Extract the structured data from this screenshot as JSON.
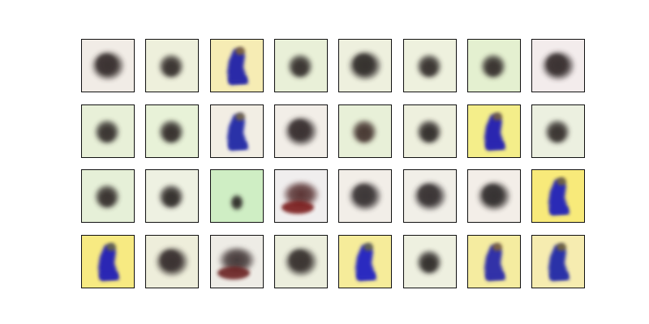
{
  "figure": {
    "rows": 4,
    "cols": 8,
    "tiles": [
      {
        "kind": "dark-blob",
        "bg": "#f1ece6",
        "fg": "#3a3230"
      },
      {
        "kind": "small-blob",
        "bg": "#eef0dc",
        "fg": "#3b3532"
      },
      {
        "kind": "blue-figure",
        "bg": "#f6ecb4",
        "fg": "#2a2aa8",
        "accent": "#8a6a2a"
      },
      {
        "kind": "small-blob",
        "bg": "#e9f0d8",
        "fg": "#3a3532"
      },
      {
        "kind": "dark-blob",
        "bg": "#eef0de",
        "fg": "#35302e"
      },
      {
        "kind": "small-blob",
        "bg": "#eef1de",
        "fg": "#3a3532"
      },
      {
        "kind": "small-blob",
        "bg": "#e4f0d0",
        "fg": "#3a3431"
      },
      {
        "kind": "dark-blob",
        "bg": "#f3ecec",
        "fg": "#3a3232"
      },
      {
        "kind": "small-blob",
        "bg": "#e8f0d8",
        "fg": "#3a3532"
      },
      {
        "kind": "small-blob",
        "bg": "#e8f2d8",
        "fg": "#37322f"
      },
      {
        "kind": "blue-figure",
        "bg": "#f2eee4",
        "fg": "#2a30a8",
        "accent": "#7a6a3a"
      },
      {
        "kind": "dark-blob",
        "bg": "#f2eee8",
        "fg": "#3a3232"
      },
      {
        "kind": "small-blob",
        "bg": "#e8f0d8",
        "fg": "#4a3a34"
      },
      {
        "kind": "small-blob",
        "bg": "#eef0de",
        "fg": "#35302e"
      },
      {
        "kind": "blue-figure",
        "bg": "#f4ee8a",
        "fg": "#2a28b0",
        "accent": "#7a6230"
      },
      {
        "kind": "small-blob",
        "bg": "#ecf0e0",
        "fg": "#3a3532"
      },
      {
        "kind": "small-blob",
        "bg": "#e6f0d8",
        "fg": "#3a3431"
      },
      {
        "kind": "small-blob",
        "bg": "#eef1e2",
        "fg": "#35302e"
      },
      {
        "kind": "tiny-blob",
        "bg": "#cfeec4",
        "fg": "#2a2624"
      },
      {
        "kind": "red-figure",
        "bg": "#f0eeee",
        "fg": "#5a3434",
        "accent": "#7a1a1a"
      },
      {
        "kind": "dark-blob",
        "bg": "#f2eee8",
        "fg": "#3d3738"
      },
      {
        "kind": "dark-blob",
        "bg": "#f1efe8",
        "fg": "#3a3435"
      },
      {
        "kind": "dark-blob",
        "bg": "#f3eee8",
        "fg": "#363130"
      },
      {
        "kind": "blue-figure",
        "bg": "#f8ea7a",
        "fg": "#2a2ab6",
        "accent": "#7a6a2a"
      },
      {
        "kind": "blue-figure",
        "bg": "#f7ea82",
        "fg": "#2a28b4",
        "accent": "#6a6a3a"
      },
      {
        "kind": "dark-blob",
        "bg": "#eeeedb",
        "fg": "#3a3230"
      },
      {
        "kind": "red-figure",
        "bg": "#eeece6",
        "fg": "#443838",
        "accent": "#6a2020"
      },
      {
        "kind": "dark-blob",
        "bg": "#eceedd",
        "fg": "#3b3532"
      },
      {
        "kind": "blue-figure",
        "bg": "#f6ec9a",
        "fg": "#2a2ac0",
        "accent": "#6a6a3a"
      },
      {
        "kind": "small-blob",
        "bg": "#eef0e0",
        "fg": "#34302e"
      },
      {
        "kind": "blue-figure",
        "bg": "#f5eca0",
        "fg": "#3030a8",
        "accent": "#8a6a2a"
      },
      {
        "kind": "blue-figure",
        "bg": "#f6ecb0",
        "fg": "#2a30a8",
        "accent": "#7a6a2a"
      }
    ]
  }
}
